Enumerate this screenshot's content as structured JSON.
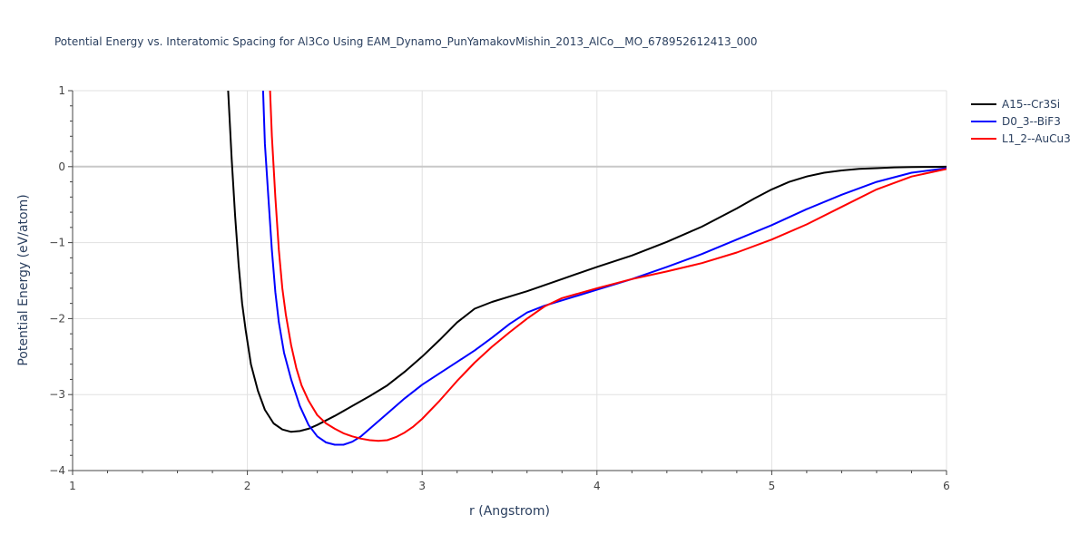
{
  "chart_data": {
    "type": "line",
    "title": "Potential Energy vs. Interatomic Spacing for Al3Co Using EAM_Dynamo_PunYamakovMishin_2013_AlCo__MO_678952612413_000",
    "xlabel": "r (Angstrom)",
    "ylabel": "Potential Energy (eV/atom)",
    "xlim": [
      1,
      6
    ],
    "ylim": [
      -4,
      1
    ],
    "xticks": [
      "1",
      "2",
      "3",
      "4",
      "5",
      "6"
    ],
    "yticks": [
      "−4",
      "−3",
      "−2",
      "−1",
      "0",
      "1"
    ],
    "grid": true,
    "legend_position": "top-right",
    "series": [
      {
        "name": "A15--Cr3Si",
        "color": "#000000",
        "x": [
          1.89,
          1.91,
          1.93,
          1.95,
          1.97,
          1.99,
          2.02,
          2.06,
          2.1,
          2.15,
          2.2,
          2.25,
          2.3,
          2.35,
          2.4,
          2.5,
          2.6,
          2.7,
          2.8,
          2.9,
          3.0,
          3.1,
          3.2,
          3.3,
          3.4,
          3.5,
          3.6,
          3.8,
          4.0,
          4.2,
          4.4,
          4.6,
          4.8,
          4.9,
          5.0,
          5.1,
          5.2,
          5.3,
          5.4,
          5.5,
          5.6,
          5.7,
          5.8,
          5.9,
          6.0
        ],
        "y": [
          1.0,
          0.1,
          -0.65,
          -1.3,
          -1.8,
          -2.15,
          -2.6,
          -2.95,
          -3.2,
          -3.38,
          -3.46,
          -3.49,
          -3.48,
          -3.45,
          -3.4,
          -3.28,
          -3.15,
          -3.02,
          -2.88,
          -2.7,
          -2.5,
          -2.28,
          -2.05,
          -1.87,
          -1.78,
          -1.71,
          -1.64,
          -1.48,
          -1.32,
          -1.17,
          -0.99,
          -0.79,
          -0.55,
          -0.42,
          -0.3,
          -0.2,
          -0.13,
          -0.08,
          -0.05,
          -0.03,
          -0.02,
          -0.01,
          -0.005,
          -0.003,
          -0.001
        ]
      },
      {
        "name": "D0_3--BiF3",
        "color": "#0000ff",
        "x": [
          2.09,
          2.1,
          2.12,
          2.14,
          2.16,
          2.18,
          2.21,
          2.25,
          2.3,
          2.35,
          2.4,
          2.45,
          2.5,
          2.55,
          2.6,
          2.65,
          2.7,
          2.8,
          2.9,
          3.0,
          3.1,
          3.2,
          3.3,
          3.4,
          3.5,
          3.6,
          3.7,
          3.8,
          4.0,
          4.2,
          4.4,
          4.6,
          4.8,
          5.0,
          5.2,
          5.4,
          5.6,
          5.8,
          6.0
        ],
        "y": [
          1.0,
          0.3,
          -0.4,
          -1.1,
          -1.65,
          -2.05,
          -2.45,
          -2.8,
          -3.15,
          -3.4,
          -3.55,
          -3.63,
          -3.66,
          -3.66,
          -3.62,
          -3.55,
          -3.45,
          -3.25,
          -3.05,
          -2.87,
          -2.72,
          -2.57,
          -2.42,
          -2.25,
          -2.07,
          -1.92,
          -1.83,
          -1.76,
          -1.62,
          -1.48,
          -1.32,
          -1.15,
          -0.96,
          -0.77,
          -0.56,
          -0.37,
          -0.2,
          -0.08,
          -0.02
        ]
      },
      {
        "name": "L1_2--AuCu3",
        "color": "#ff0000",
        "x": [
          2.13,
          2.14,
          2.16,
          2.18,
          2.2,
          2.22,
          2.25,
          2.28,
          2.31,
          2.35,
          2.4,
          2.45,
          2.5,
          2.55,
          2.6,
          2.65,
          2.7,
          2.75,
          2.8,
          2.85,
          2.9,
          2.95,
          3.0,
          3.1,
          3.2,
          3.3,
          3.4,
          3.5,
          3.6,
          3.7,
          3.8,
          4.0,
          4.2,
          4.4,
          4.6,
          4.8,
          5.0,
          5.2,
          5.4,
          5.6,
          5.8,
          6.0
        ],
        "y": [
          1.0,
          0.4,
          -0.4,
          -1.1,
          -1.6,
          -1.95,
          -2.35,
          -2.65,
          -2.88,
          -3.08,
          -3.27,
          -3.38,
          -3.45,
          -3.51,
          -3.55,
          -3.58,
          -3.6,
          -3.61,
          -3.6,
          -3.56,
          -3.5,
          -3.42,
          -3.32,
          -3.08,
          -2.82,
          -2.58,
          -2.37,
          -2.18,
          -2.0,
          -1.84,
          -1.73,
          -1.6,
          -1.48,
          -1.38,
          -1.27,
          -1.13,
          -0.96,
          -0.76,
          -0.53,
          -0.3,
          -0.13,
          -0.03
        ]
      }
    ]
  }
}
